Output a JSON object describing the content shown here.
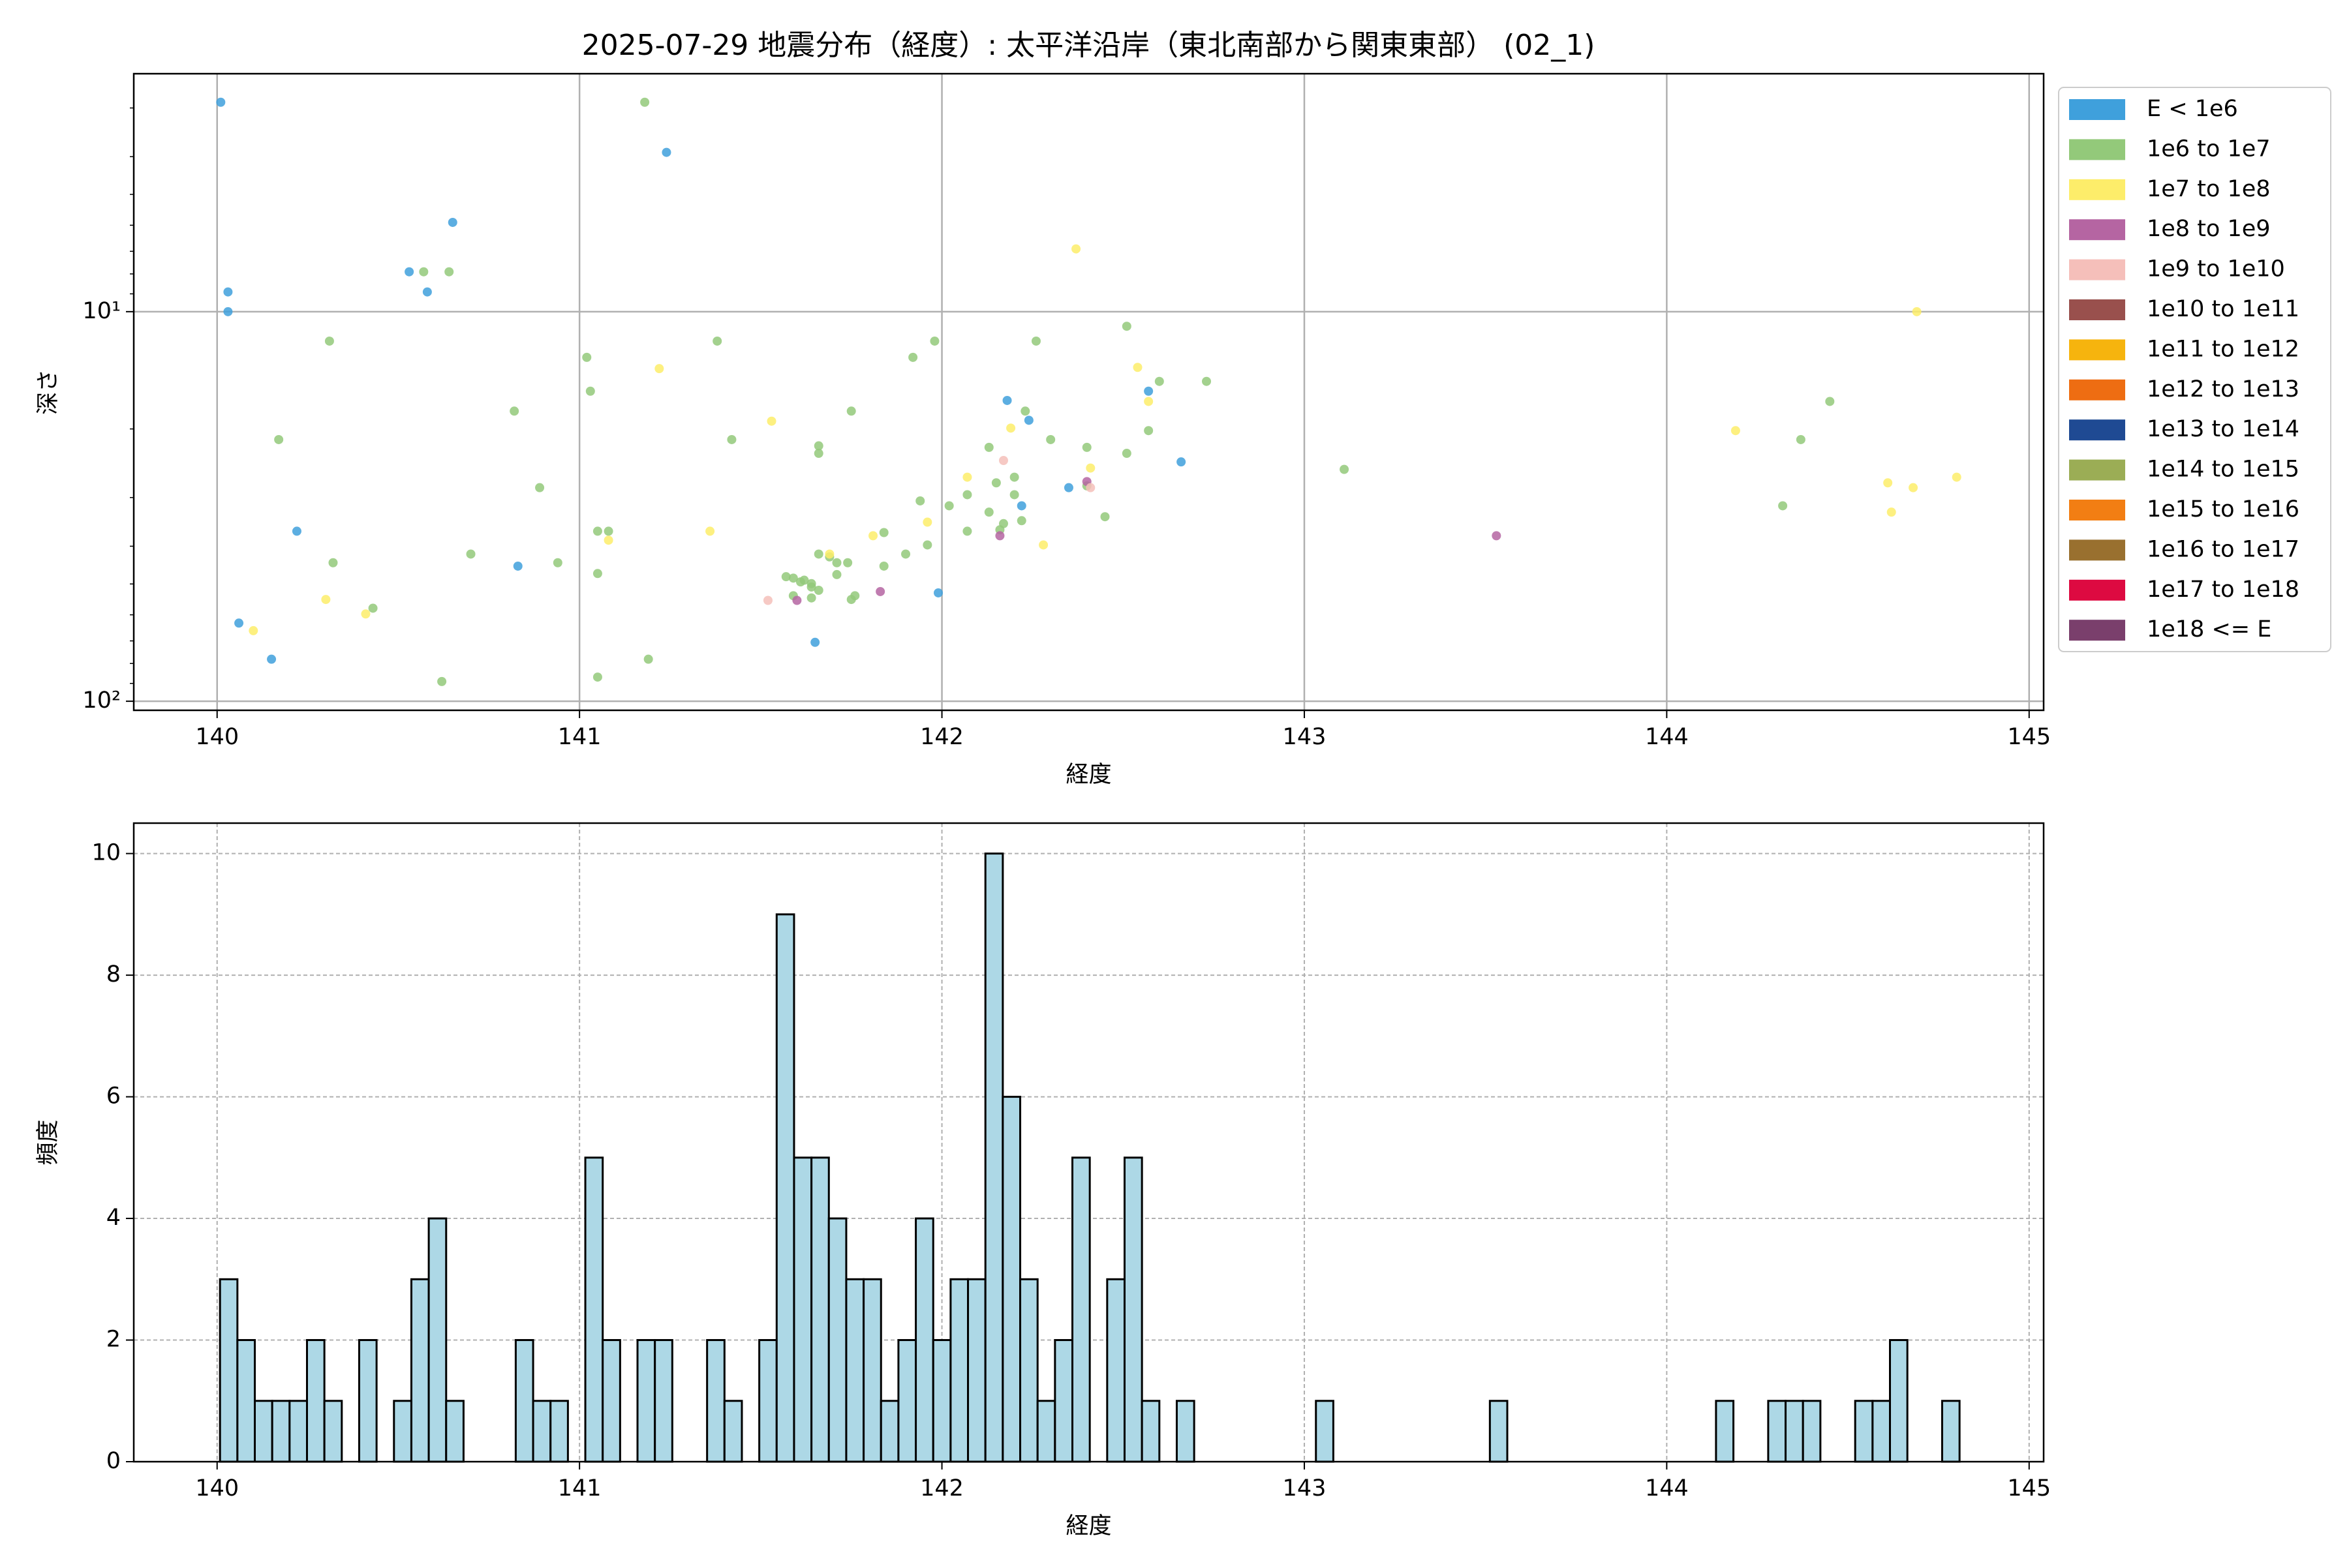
{
  "chart_data": [
    {
      "type": "scatter",
      "title": "2025-07-29 地震分布（経度）: 太平洋沿岸（東北南部から関東東部） (02_1)",
      "xlabel": "経度",
      "ylabel": "深さ",
      "xlim": [
        139.77,
        145.04
      ],
      "ylim": [
        2.45,
        105.5
      ],
      "log_y": true,
      "y_inverted": true,
      "xticks": [
        140,
        141,
        142,
        143,
        144,
        145
      ],
      "yticks": [
        {
          "value": 10,
          "label": "10¹"
        },
        {
          "value": 100,
          "label": "10²"
        }
      ],
      "yminor_ticks": [
        3,
        4,
        5,
        6,
        7,
        8,
        9,
        20,
        30,
        40,
        50,
        60,
        70,
        80,
        90
      ],
      "grid": true,
      "legend": "outside upper right",
      "series": [
        {
          "name": "E < 1e6",
          "color": "#3fa0dc",
          "x": [
            140.01,
            140.03,
            140.03,
            140.06,
            140.15,
            140.22,
            140.53,
            140.58,
            140.65,
            140.83,
            141.24,
            141.65,
            141.99,
            142.18,
            142.24,
            142.22,
            142.35,
            142.57,
            142.66
          ],
          "values": [
            2.9,
            8.9,
            10,
            63,
            78,
            36.6,
            7.9,
            8.9,
            5.9,
            45,
            3.9,
            70.6,
            52.7,
            16.9,
            19,
            31.5,
            28.3,
            16,
            24.3
          ]
        },
        {
          "name": "1e6 to 1e7",
          "color": "#93c97a",
          "x": [
            141.18,
            140.57,
            140.64,
            140.31,
            140.17,
            140.32,
            140.43,
            140.62,
            140.7,
            140.82,
            140.89,
            140.94,
            141.02,
            141.03,
            141.05,
            141.05,
            141.08,
            141.05,
            141.19,
            141.38,
            141.42,
            141.66,
            141.66,
            141.75,
            141.66,
            141.57,
            141.59,
            141.61,
            141.62,
            141.64,
            141.59,
            141.64,
            141.66,
            141.64,
            141.69,
            141.71,
            141.71,
            141.74,
            141.75,
            141.76,
            141.84,
            141.84,
            141.9,
            141.94,
            141.96,
            141.92,
            141.98,
            142.02,
            142.07,
            142.07,
            142.13,
            142.13,
            142.15,
            142.16,
            142.17,
            142.2,
            142.2,
            142.22,
            142.23,
            142.26,
            142.3,
            142.4,
            142.4,
            142.45,
            142.51,
            142.51,
            142.57,
            142.6,
            142.73,
            143.11,
            144.32,
            144.37,
            144.45
          ],
          "values": [
            2.9,
            7.9,
            7.9,
            11.9,
            21.3,
            44.1,
            57.7,
            89,
            41.9,
            18,
            28.3,
            44.1,
            13.1,
            16,
            36.6,
            47,
            36.6,
            86.7,
            78,
            11.9,
            21.3,
            22.1,
            23.1,
            18,
            41.9,
            47.9,
            48.3,
            49.4,
            48.9,
            49.9,
            53.6,
            50.9,
            51.9,
            54.3,
            42.6,
            44.1,
            47.3,
            44.1,
            54.8,
            53.6,
            36.9,
            45,
            41.9,
            30.6,
            39.7,
            13.1,
            11.9,
            31.5,
            36.6,
            29.5,
            32.7,
            22.3,
            27.5,
            36.3,
            35,
            26.6,
            29.5,
            34.4,
            18,
            11.9,
            21.3,
            22.3,
            28,
            33.6,
            10.9,
            23.1,
            20.2,
            15.1,
            15.1,
            25.4,
            31.5,
            21.3,
            17
          ]
        },
        {
          "name": "1e7 to 1e8",
          "color": "#fded6a",
          "x": [
            140.1,
            140.3,
            140.41,
            141.08,
            141.22,
            141.36,
            141.53,
            141.69,
            141.81,
            141.96,
            142.07,
            142.19,
            142.28,
            142.37,
            142.41,
            142.54,
            142.57,
            144.19,
            144.61,
            144.62,
            144.68,
            144.69,
            144.8
          ],
          "values": [
            65.9,
            54.8,
            59.7,
            38.6,
            14,
            36.6,
            19.1,
            41.9,
            37.6,
            34.7,
            26.6,
            19.9,
            39.7,
            6.9,
            25.2,
            13.9,
            17,
            20.2,
            27.5,
            32.7,
            28.3,
            10,
            26.6
          ]
        },
        {
          "name": "1e8 to 1e9",
          "color": "#b565a2",
          "x": [
            141.6,
            141.83,
            142.16,
            142.4,
            143.53
          ],
          "values": [
            55.1,
            52.3,
            37.6,
            27.3,
            37.6
          ]
        },
        {
          "name": "1e9 to 1e10",
          "color": "#f5bfba",
          "x": [
            141.52,
            142.17,
            142.41
          ],
          "values": [
            55.1,
            24.1,
            28.3
          ]
        },
        {
          "name": "1e10 to 1e11",
          "color": "#99504d",
          "x": [],
          "values": []
        },
        {
          "name": "1e11 to 1e12",
          "color": "#f6b40e",
          "x": [],
          "values": []
        },
        {
          "name": "1e12 to 1e13",
          "color": "#ee6d12",
          "x": [],
          "values": []
        },
        {
          "name": "1e13 to 1e14",
          "color": "#1f4a93",
          "x": [],
          "values": []
        },
        {
          "name": "1e14 to 1e15",
          "color": "#9bad55",
          "x": [],
          "values": []
        },
        {
          "name": "1e15 to 1e16",
          "color": "#f27e13",
          "x": [],
          "values": []
        },
        {
          "name": "1e16 to 1e17",
          "color": "#99702f",
          "x": [],
          "values": []
        },
        {
          "name": "1e17 to 1e18",
          "color": "#dd0a41",
          "x": [],
          "values": []
        },
        {
          "name": "1e18 <= E",
          "color": "#7a3f6c",
          "x": [],
          "values": []
        }
      ]
    },
    {
      "type": "histogram",
      "xlabel": "経度",
      "ylabel": "頻度",
      "xlim": [
        139.77,
        145.04
      ],
      "ylim": [
        0,
        10.5
      ],
      "xticks": [
        140,
        141,
        142,
        143,
        144,
        145
      ],
      "yticks": [
        0,
        2,
        4,
        6,
        8,
        10
      ],
      "grid": true,
      "grid_style": "dashed",
      "color": "#add8e6",
      "edgecolor": "#000000",
      "bins": [
        140.008,
        140.056,
        140.104,
        140.152,
        140.2,
        140.248,
        140.296,
        140.344,
        140.392,
        140.44,
        140.488,
        140.536,
        140.584,
        140.632,
        140.68,
        140.728,
        140.776,
        140.824,
        140.872,
        140.92,
        140.968,
        141.016,
        141.064,
        141.112,
        141.16,
        141.208,
        141.256,
        141.304,
        141.352,
        141.4,
        141.448,
        141.496,
        141.544,
        141.592,
        141.64,
        141.688,
        141.736,
        141.784,
        141.832,
        141.88,
        141.928,
        141.976,
        142.024,
        142.072,
        142.12,
        142.168,
        142.216,
        142.264,
        142.312,
        142.36,
        142.408,
        142.456,
        142.504,
        142.552,
        142.6,
        142.648,
        142.696,
        142.744,
        142.792,
        142.84,
        142.888,
        142.936,
        142.984,
        143.032,
        143.08,
        143.128,
        143.176,
        143.224,
        143.272,
        143.32,
        143.368,
        143.416,
        143.464,
        143.512,
        143.56,
        143.608,
        143.656,
        143.704,
        143.752,
        143.8,
        143.848,
        143.896,
        143.944,
        143.992,
        144.04,
        144.088,
        144.136,
        144.184,
        144.232,
        144.28,
        144.328,
        144.376,
        144.424,
        144.472,
        144.52,
        144.568,
        144.616,
        144.664,
        144.712,
        144.76,
        144.808
      ],
      "counts": [
        3,
        2,
        1,
        1,
        1,
        2,
        1,
        0,
        2,
        0,
        1,
        3,
        4,
        1,
        0,
        0,
        0,
        2,
        1,
        1,
        0,
        5,
        2,
        0,
        2,
        2,
        0,
        0,
        2,
        1,
        0,
        2,
        9,
        5,
        5,
        4,
        3,
        3,
        1,
        2,
        4,
        2,
        3,
        3,
        10,
        6,
        3,
        1,
        2,
        5,
        0,
        3,
        5,
        1,
        0,
        1,
        0,
        0,
        0,
        0,
        0,
        0,
        0,
        1,
        0,
        0,
        0,
        0,
        0,
        0,
        0,
        0,
        0,
        1,
        0,
        0,
        0,
        0,
        0,
        0,
        0,
        0,
        0,
        0,
        0,
        0,
        1,
        0,
        0,
        1,
        1,
        1,
        0,
        0,
        1,
        1,
        2,
        0,
        0,
        1
      ]
    }
  ]
}
